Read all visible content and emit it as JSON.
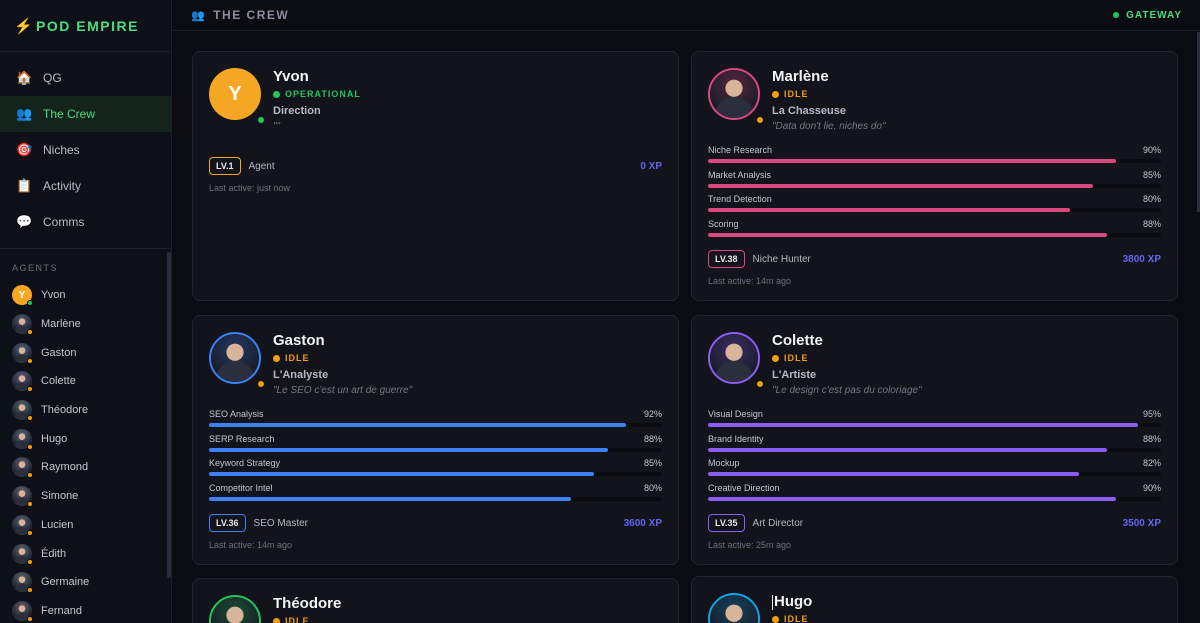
{
  "app": {
    "name": "POD EMPIRE",
    "icon": "lightning-icon"
  },
  "nav": [
    {
      "label": "QG",
      "icon": "house-icon"
    },
    {
      "label": "The Crew",
      "icon": "people-icon",
      "active": true
    },
    {
      "label": "Niches",
      "icon": "target-icon"
    },
    {
      "label": "Activity",
      "icon": "clipboard-icon"
    },
    {
      "label": "Comms",
      "icon": "speech-bubble-icon"
    }
  ],
  "agents_section": {
    "title": "AGENTS"
  },
  "agents": [
    {
      "name": "Yvon",
      "initial": "Y",
      "status_color": "#22c55e"
    },
    {
      "name": "Marlène",
      "status_color": "#f59e0b"
    },
    {
      "name": "Gaston",
      "status_color": "#f59e0b"
    },
    {
      "name": "Colette",
      "status_color": "#f59e0b"
    },
    {
      "name": "Théodore",
      "status_color": "#f59e0b"
    },
    {
      "name": "Hugo",
      "status_color": "#f59e0b"
    },
    {
      "name": "Raymond",
      "status_color": "#f59e0b"
    },
    {
      "name": "Simone",
      "status_color": "#f59e0b"
    },
    {
      "name": "Lucien",
      "status_color": "#f59e0b"
    },
    {
      "name": "Édith",
      "status_color": "#f59e0b"
    },
    {
      "name": "Germaine",
      "status_color": "#f59e0b"
    },
    {
      "name": "Fernand",
      "status_color": "#f59e0b"
    }
  ],
  "header": {
    "title": "THE CREW",
    "icon": "people-icon",
    "gateway": "GATEWAY"
  },
  "cards": [
    {
      "name": "Yvon",
      "initial": "Y",
      "status": "OPERATIONAL",
      "status_color": "#22c55e",
      "role": "Direction",
      "quote": "\"\"",
      "accent": "#f5a623",
      "skills": [],
      "level": "LV.1",
      "title": "Agent",
      "xp": "0 XP",
      "last_active": "Last active: just now"
    },
    {
      "name": "Marlène",
      "status": "IDLE",
      "status_color": "#f59e0b",
      "role": "La Chasseuse",
      "quote": "\"Data don't lie, niches do\"",
      "accent": "#d9487f",
      "skills": [
        {
          "name": "Niche Research",
          "pct": "90%",
          "value": 90
        },
        {
          "name": "Market Analysis",
          "pct": "85%",
          "value": 85
        },
        {
          "name": "Trend Detection",
          "pct": "80%",
          "value": 80
        },
        {
          "name": "Scoring",
          "pct": "88%",
          "value": 88
        }
      ],
      "level": "LV.38",
      "title": "Niche Hunter",
      "xp": "3800 XP",
      "last_active": "Last active: 14m ago"
    },
    {
      "name": "Gaston",
      "status": "IDLE",
      "status_color": "#f59e0b",
      "role": "L'Analyste",
      "quote": "\"Le SEO c'est un art de guerre\"",
      "accent": "#3b82f6",
      "skills": [
        {
          "name": "SEO Analysis",
          "pct": "92%",
          "value": 92
        },
        {
          "name": "SERP Research",
          "pct": "88%",
          "value": 88
        },
        {
          "name": "Keyword Strategy",
          "pct": "85%",
          "value": 85
        },
        {
          "name": "Competitor Intel",
          "pct": "80%",
          "value": 80
        }
      ],
      "level": "LV.36",
      "title": "SEO Master",
      "xp": "3600 XP",
      "last_active": "Last active: 14m ago"
    },
    {
      "name": "Colette",
      "status": "IDLE",
      "status_color": "#f59e0b",
      "role": "L'Artiste",
      "quote": "\"Le design c'est pas du coloriage\"",
      "accent": "#8b5cf6",
      "skills": [
        {
          "name": "Visual Design",
          "pct": "95%",
          "value": 95
        },
        {
          "name": "Brand Identity",
          "pct": "88%",
          "value": 88
        },
        {
          "name": "Mockup",
          "pct": "82%",
          "value": 82
        },
        {
          "name": "Creative Direction",
          "pct": "90%",
          "value": 90
        }
      ],
      "level": "LV.35",
      "title": "Art Director",
      "xp": "3500 XP",
      "last_active": "Last active: 25m ago"
    },
    {
      "name": "Théodore",
      "status": "IDLE",
      "status_color": "#f59e0b",
      "accent": "#22c55e"
    },
    {
      "name": "Hugo",
      "status": "IDLE",
      "status_color": "#f59e0b",
      "accent": "#0ea5e9"
    }
  ]
}
